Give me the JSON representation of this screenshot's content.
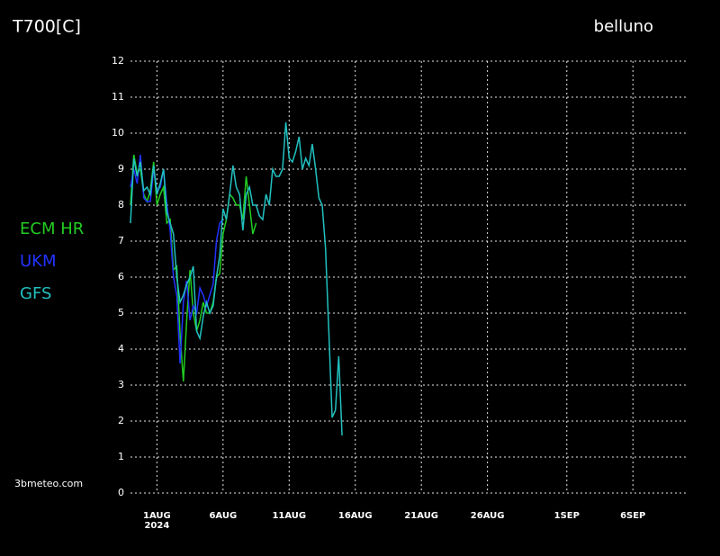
{
  "chart_data": {
    "type": "line",
    "title": "T700[C]",
    "subtitle": "belluno",
    "source": "3bmeteo.com",
    "x": [
      "2024-07-30 00:00",
      "2024-07-30 06:00",
      "2024-07-30 12:00",
      "2024-07-30 18:00",
      "2024-07-31 00:00",
      "2024-07-31 06:00",
      "2024-07-31 12:00",
      "2024-07-31 18:00",
      "2024-08-01 00:00",
      "2024-08-01 06:00",
      "2024-08-01 12:00",
      "2024-08-01 18:00",
      "2024-08-02 00:00",
      "2024-08-02 06:00",
      "2024-08-02 12:00",
      "2024-08-02 18:00",
      "2024-08-03 00:00",
      "2024-08-03 06:00",
      "2024-08-03 12:00",
      "2024-08-03 18:00",
      "2024-08-04 00:00",
      "2024-08-04 06:00",
      "2024-08-04 12:00",
      "2024-08-04 18:00",
      "2024-08-05 00:00",
      "2024-08-05 06:00",
      "2024-08-05 12:00",
      "2024-08-05 18:00",
      "2024-08-06 00:00",
      "2024-08-06 06:00",
      "2024-08-06 12:00",
      "2024-08-06 18:00",
      "2024-08-07 00:00",
      "2024-08-07 06:00",
      "2024-08-07 12:00",
      "2024-08-07 18:00",
      "2024-08-08 00:00",
      "2024-08-08 06:00",
      "2024-08-08 12:00",
      "2024-08-08 18:00",
      "2024-08-09 00:00",
      "2024-08-09 06:00",
      "2024-08-09 12:00",
      "2024-08-09 18:00",
      "2024-08-10 00:00",
      "2024-08-10 06:00",
      "2024-08-10 12:00",
      "2024-08-10 18:00",
      "2024-08-11 00:00",
      "2024-08-11 06:00",
      "2024-08-11 12:00",
      "2024-08-11 18:00",
      "2024-08-12 00:00",
      "2024-08-12 06:00",
      "2024-08-12 12:00",
      "2024-08-12 18:00",
      "2024-08-13 00:00",
      "2024-08-13 06:00",
      "2024-08-13 12:00",
      "2024-08-13 18:00",
      "2024-08-14 00:00",
      "2024-08-14 06:00",
      "2024-08-14 12:00",
      "2024-08-14 18:00",
      "2024-08-15 00:00"
    ],
    "series": [
      {
        "name": "ECM  HR",
        "color": "#22cc22",
        "values": [
          8.0,
          9.4,
          8.9,
          9.0,
          8.3,
          8.1,
          8.4,
          9.2,
          8.0,
          8.3,
          8.5,
          7.5,
          7.6,
          6.2,
          6.3,
          4.4,
          3.1,
          4.8,
          6.2,
          5.0,
          4.5,
          4.8,
          5.3,
          5.0,
          5.0,
          5.3,
          6.0,
          6.1,
          7.2,
          7.6,
          8.3,
          8.2,
          8.0,
          8.0,
          7.6,
          8.8,
          8.0,
          7.2,
          7.5,
          null,
          null,
          null,
          null,
          null,
          null,
          null,
          null,
          null,
          null,
          null,
          null,
          null,
          null,
          null,
          null,
          null,
          null,
          null,
          null,
          null,
          null,
          null,
          null,
          null,
          null
        ]
      },
      {
        "name": "UKM",
        "color": "#2233ff",
        "values": [
          8.5,
          9.0,
          8.6,
          9.4,
          8.2,
          8.1,
          8.1,
          9.0,
          8.4,
          8.5,
          9.0,
          8.0,
          7.3,
          6.0,
          5.5,
          3.6,
          5.3,
          5.9,
          4.8,
          5.2,
          5.0,
          5.7,
          5.5,
          5.2,
          5.5,
          5.8,
          7.0,
          7.5,
          7.6,
          null,
          null,
          null,
          null,
          null,
          null,
          null,
          null,
          null,
          null,
          null,
          null,
          null,
          null,
          null,
          null,
          null,
          null,
          null,
          null,
          null,
          null,
          null,
          null,
          null,
          null,
          null,
          null,
          null,
          null,
          null,
          null,
          null,
          null,
          null,
          null
        ]
      },
      {
        "name": "GFS",
        "color": "#22c0c0",
        "values": [
          7.5,
          9.3,
          8.8,
          9.2,
          8.4,
          8.5,
          8.3,
          9.1,
          8.3,
          8.6,
          9.0,
          7.8,
          7.5,
          7.2,
          6.0,
          5.3,
          5.5,
          5.8,
          6.0,
          6.3,
          4.5,
          4.3,
          4.9,
          5.3,
          5.0,
          5.2,
          6.0,
          6.6,
          7.9,
          7.6,
          8.3,
          9.1,
          8.5,
          8.3,
          7.3,
          8.3,
          8.5,
          8.0,
          8.0,
          7.7,
          7.6,
          8.3,
          8.0,
          9.0,
          8.8,
          8.8,
          9.0,
          10.3,
          9.3,
          9.2,
          9.5,
          9.9,
          9.0,
          9.3,
          9.1,
          9.7,
          9.0,
          8.2,
          8.0,
          6.8,
          4.5,
          2.1,
          2.3,
          3.8,
          1.6
        ]
      }
    ],
    "xlim": [
      "2024-07-30 00:00",
      "2024-09-10 00:00"
    ],
    "xticks": [
      {
        "value": "2024-08-01 00:00",
        "label": "1AUG"
      },
      {
        "value": "2024-08-06 00:00",
        "label": "6AUG"
      },
      {
        "value": "2024-08-11 00:00",
        "label": "11AUG"
      },
      {
        "value": "2024-08-16 00:00",
        "label": "16AUG"
      },
      {
        "value": "2024-08-21 00:00",
        "label": "21AUG"
      },
      {
        "value": "2024-08-26 00:00",
        "label": "26AUG"
      },
      {
        "value": "2024-09-01 00:00",
        "label": "1SEP"
      },
      {
        "value": "2024-09-06 00:00",
        "label": "6SEP"
      }
    ],
    "x_year_label": "2024",
    "ylim": [
      0,
      12
    ],
    "yticks": [
      0,
      1,
      2,
      3,
      4,
      5,
      6,
      7,
      8,
      9,
      10,
      11,
      12
    ],
    "grid": true
  }
}
